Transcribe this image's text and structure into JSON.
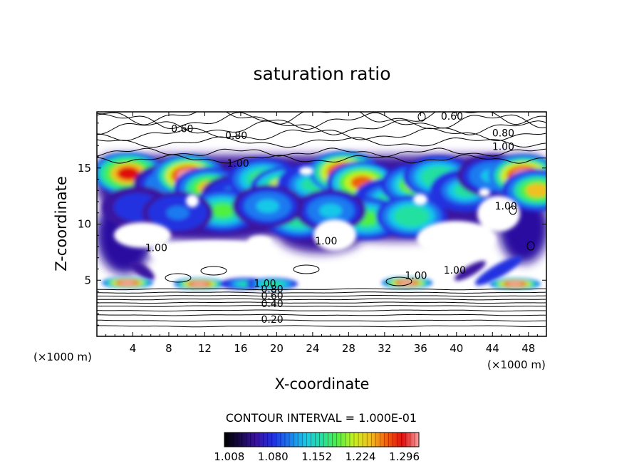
{
  "chart_data": {
    "type": "heatmap",
    "title": "saturation ratio",
    "xlabel": "X-coordinate",
    "ylabel": "Z-coordinate",
    "x_unit": "(×1000 m)",
    "z_unit": "(×1000 m)",
    "x_ticks": [
      4,
      8,
      12,
      16,
      20,
      24,
      28,
      32,
      36,
      40,
      44,
      48
    ],
    "y_ticks": [
      5,
      10,
      15
    ],
    "xlim": [
      0,
      50
    ],
    "ylim": [
      0,
      20
    ],
    "contour_interval_text": "CONTOUR INTERVAL = 1.000E-01",
    "colorbar": {
      "range": [
        1.0,
        1.32
      ],
      "tick_labels": [
        "1.008",
        "1.080",
        "1.152",
        "1.224",
        "1.296"
      ],
      "tick_values": [
        1.008,
        1.08,
        1.152,
        1.224,
        1.296
      ],
      "colormap": [
        "#000000",
        "#1a0a4a",
        "#3a14a0",
        "#2030e0",
        "#1c7af0",
        "#18c8e8",
        "#20e0a0",
        "#50f040",
        "#c8f020",
        "#f0c020",
        "#f06010",
        "#e01010",
        "#f8a0a0"
      ]
    },
    "contour_labels": [
      {
        "text": "0.20",
        "x": 19.5,
        "z": 1.2
      },
      {
        "text": "0.40",
        "x": 19.5,
        "z": 2.6
      },
      {
        "text": "0.60",
        "x": 19.5,
        "z": 3.3
      },
      {
        "text": "0.80",
        "x": 19.5,
        "z": 3.9
      },
      {
        "text": "1.00",
        "x": 18.7,
        "z": 4.4
      },
      {
        "text": "1.00",
        "x": 35.5,
        "z": 5.1
      },
      {
        "text": "1.00",
        "x": 39.8,
        "z": 5.6
      },
      {
        "text": "1.00",
        "x": 25.5,
        "z": 8.2
      },
      {
        "text": "1.00",
        "x": 6.6,
        "z": 7.6
      },
      {
        "text": "1.00",
        "x": 15.7,
        "z": 15.1
      },
      {
        "text": "1.00",
        "x": 45.2,
        "z": 16.6
      },
      {
        "text": "1.00",
        "x": 45.5,
        "z": 11.3
      },
      {
        "text": "0.80",
        "x": 15.5,
        "z": 17.6
      },
      {
        "text": "0.80",
        "x": 45.2,
        "z": 17.8
      },
      {
        "text": "0.60",
        "x": 9.5,
        "z": 18.2
      },
      {
        "text": "0.60",
        "x": 39.5,
        "z": 19.3
      }
    ],
    "moist_blobs": [
      {
        "x": 3.5,
        "z": 14.5,
        "v": 1.28
      },
      {
        "x": 8.0,
        "z": 13.5,
        "v": 1.1
      },
      {
        "x": 10.2,
        "z": 14.3,
        "v": 1.29
      },
      {
        "x": 12.5,
        "z": 13.2,
        "v": 1.2
      },
      {
        "x": 15.5,
        "z": 12.5,
        "v": 1.08
      },
      {
        "x": 18.5,
        "z": 14.0,
        "v": 1.15
      },
      {
        "x": 21.0,
        "z": 13.2,
        "v": 1.22
      },
      {
        "x": 24.0,
        "z": 13.5,
        "v": 1.12
      },
      {
        "x": 27.5,
        "z": 14.6,
        "v": 1.3
      },
      {
        "x": 29.5,
        "z": 13.7,
        "v": 1.24
      },
      {
        "x": 32.5,
        "z": 12.2,
        "v": 1.12
      },
      {
        "x": 35.5,
        "z": 13.5,
        "v": 1.18
      },
      {
        "x": 38.0,
        "z": 14.2,
        "v": 1.14
      },
      {
        "x": 41.0,
        "z": 13.0,
        "v": 1.12
      },
      {
        "x": 44.0,
        "z": 14.3,
        "v": 1.09
      },
      {
        "x": 47.5,
        "z": 14.3,
        "v": 1.31
      },
      {
        "x": 49.0,
        "z": 13.0,
        "v": 1.2
      },
      {
        "x": 14.0,
        "z": 11.2,
        "v": 1.15
      },
      {
        "x": 22.5,
        "z": 10.6,
        "v": 1.14
      },
      {
        "x": 30.0,
        "z": 10.5,
        "v": 1.16
      },
      {
        "x": 35.0,
        "z": 10.7,
        "v": 1.14
      },
      {
        "x": 4.5,
        "z": 11.5,
        "v": 1.05
      },
      {
        "x": 9.0,
        "z": 11.0,
        "v": 1.06
      },
      {
        "x": 26.0,
        "z": 11.2,
        "v": 1.1
      },
      {
        "x": 19.0,
        "z": 11.6,
        "v": 1.1
      },
      {
        "x": 3.4,
        "z": 4.9,
        "v": 1.3
      },
      {
        "x": 11.4,
        "z": 4.8,
        "v": 1.29
      },
      {
        "x": 16.5,
        "z": 4.8,
        "v": 1.12
      },
      {
        "x": 19.5,
        "z": 4.8,
        "v": 1.14
      },
      {
        "x": 34.5,
        "z": 4.9,
        "v": 1.3
      },
      {
        "x": 46.5,
        "z": 4.8,
        "v": 1.29
      }
    ]
  }
}
